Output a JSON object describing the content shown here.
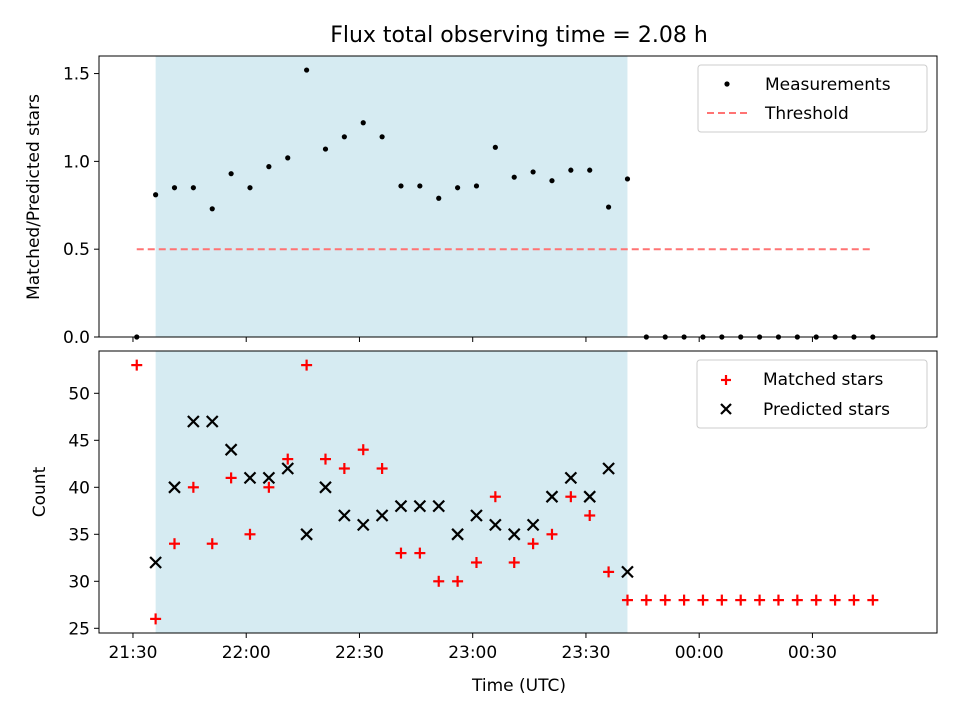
{
  "chart_data": [
    {
      "type": "scatter",
      "title": "Flux total observing time = 2.08 h",
      "xlabel": "",
      "ylabel": "Matched/Predicted stars",
      "ylim": [
        0,
        1.6
      ],
      "yticks": [
        "0.0",
        "0.5",
        "1.0",
        "1.5"
      ],
      "xlim": [
        "21:21",
        "01:03"
      ],
      "shaded_span": [
        "21:36",
        "23:41"
      ],
      "shaded_color": "#add8e6",
      "legend": {
        "position": "top-right",
        "entries": [
          "Measurements",
          "Threshold"
        ]
      },
      "series": [
        {
          "name": "Measurements",
          "marker": "dot",
          "color": "#000000",
          "x": [
            "21:31",
            "21:36",
            "21:41",
            "21:46",
            "21:51",
            "21:56",
            "22:01",
            "22:06",
            "22:11",
            "22:16",
            "22:21",
            "22:26",
            "22:31",
            "22:36",
            "22:41",
            "22:46",
            "22:51",
            "22:56",
            "23:01",
            "23:06",
            "23:11",
            "23:16",
            "23:21",
            "23:26",
            "23:31",
            "23:36",
            "23:41",
            "23:46",
            "23:51",
            "23:56",
            "00:01",
            "00:06",
            "00:11",
            "00:16",
            "00:21",
            "00:26",
            "00:31",
            "00:36",
            "00:41",
            "00:46"
          ],
          "y": [
            0.0,
            0.81,
            0.85,
            0.85,
            0.73,
            0.93,
            0.85,
            0.97,
            1.02,
            1.52,
            1.07,
            1.14,
            1.22,
            1.14,
            0.86,
            0.86,
            0.79,
            0.85,
            0.86,
            1.08,
            0.91,
            0.94,
            0.89,
            0.95,
            0.95,
            0.74,
            0.9,
            0.0,
            0.0,
            0.0,
            0.0,
            0.0,
            0.0,
            0.0,
            0.0,
            0.0,
            0.0,
            0.0,
            0.0,
            0.0
          ]
        },
        {
          "name": "Threshold",
          "style": "dashed",
          "color": "#ff7373",
          "x": [
            "21:31",
            "00:46"
          ],
          "y": [
            0.5,
            0.5
          ]
        }
      ]
    },
    {
      "type": "scatter",
      "title": "",
      "xlabel": "Time (UTC)",
      "ylabel": "Count",
      "ylim": [
        24.5,
        54.5
      ],
      "yticks": [
        "25",
        "30",
        "35",
        "40",
        "45",
        "50"
      ],
      "xticks": [
        "21:30",
        "22:00",
        "22:30",
        "23:00",
        "23:30",
        "00:00",
        "00:30"
      ],
      "shaded_span": [
        "21:36",
        "23:41"
      ],
      "legend": {
        "position": "top-right",
        "entries": [
          "Matched stars",
          "Predicted stars"
        ]
      },
      "series": [
        {
          "name": "Matched stars",
          "marker": "plus",
          "color": "#ff0000",
          "x": [
            "21:31",
            "21:36",
            "21:41",
            "21:46",
            "21:51",
            "21:56",
            "22:01",
            "22:06",
            "22:11",
            "22:16",
            "22:21",
            "22:26",
            "22:31",
            "22:36",
            "22:41",
            "22:46",
            "22:51",
            "22:56",
            "23:01",
            "23:06",
            "23:11",
            "23:16",
            "23:21",
            "23:26",
            "23:31",
            "23:36",
            "23:41",
            "23:46",
            "23:51",
            "23:56",
            "00:01",
            "00:06",
            "00:11",
            "00:16",
            "00:21",
            "00:26",
            "00:31",
            "00:36",
            "00:41",
            "00:46"
          ],
          "y": [
            53,
            26,
            34,
            40,
            34,
            41,
            35,
            40,
            43,
            53,
            43,
            42,
            44,
            42,
            33,
            33,
            30,
            30,
            32,
            39,
            32,
            34,
            35,
            39,
            37,
            31,
            28,
            28,
            28,
            28,
            28,
            28,
            28,
            28,
            28,
            28,
            28,
            28,
            28,
            28
          ]
        },
        {
          "name": "Predicted stars",
          "marker": "x",
          "color": "#000000",
          "x": [
            "21:36",
            "21:41",
            "21:46",
            "21:51",
            "21:56",
            "22:01",
            "22:06",
            "22:11",
            "22:16",
            "22:21",
            "22:26",
            "22:31",
            "22:36",
            "22:41",
            "22:46",
            "22:51",
            "22:56",
            "23:01",
            "23:06",
            "23:11",
            "23:16",
            "23:21",
            "23:26",
            "23:31",
            "23:36",
            "23:41"
          ],
          "y": [
            32,
            40,
            47,
            47,
            44,
            41,
            41,
            42,
            35,
            40,
            37,
            36,
            37,
            38,
            38,
            38,
            35,
            37,
            36,
            35,
            36,
            39,
            41,
            39,
            42,
            31
          ]
        }
      ]
    }
  ]
}
